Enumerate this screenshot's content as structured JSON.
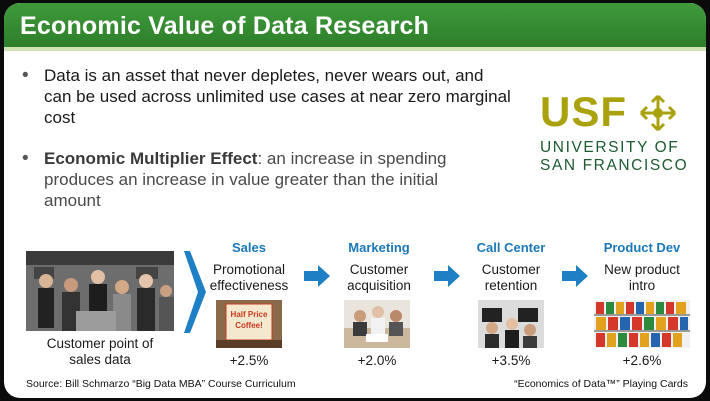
{
  "title": "Economic Value of Data Research",
  "bullets": {
    "first": "Data is an asset that never depletes, never wears out, and can be used across unlimited use cases at near zero marginal cost",
    "second_bold": "Economic Multiplier Effect",
    "second_rest": ": an increase in spending produces an increase in value greater than the initial amount"
  },
  "logo": {
    "mark": "USF",
    "line1": "UNIVERSITY OF",
    "line2": "SAN FRANCISCO",
    "colors": {
      "gold": "#a9a20d",
      "green": "#1e5a32"
    }
  },
  "source_image": {
    "caption_line1": "Customer point of",
    "caption_line2": "sales data"
  },
  "steps": [
    {
      "title": "Sales",
      "desc1": "Promotional",
      "desc2": "effectiveness",
      "value": "+2.5%",
      "image_text1": "Half Price",
      "image_text2": "Coffee!"
    },
    {
      "title": "Marketing",
      "desc1": "Customer",
      "desc2": "acquisition",
      "value": "+2.0%"
    },
    {
      "title": "Call Center",
      "desc1": "Customer",
      "desc2": "retention",
      "value": "+3.5%"
    },
    {
      "title": "Product Dev",
      "desc1": "New product",
      "desc2": "intro",
      "value": "+2.6%"
    }
  ],
  "footer": {
    "source": "Source: Bill Schmarzo “Big Data MBA” Course Curriculum",
    "cards": "“Economics of Data™” Playing Cards"
  },
  "colors": {
    "title_bar": "#2d7f2a",
    "accent_blue": "#1b78b8",
    "arrow_blue": "#1f7fc4"
  }
}
